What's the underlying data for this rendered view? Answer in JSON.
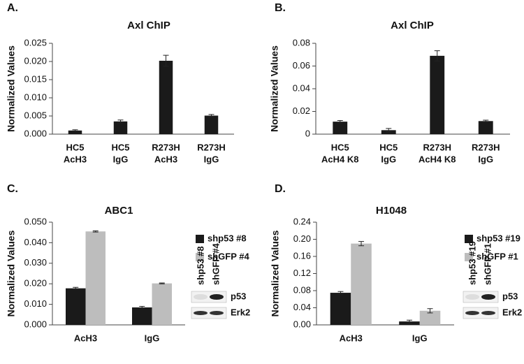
{
  "chart_data": [
    {
      "type": "bar",
      "panel_label": "A.",
      "title": "Axl ChIP",
      "y_label": "Normalized Values",
      "categories": [
        [
          "HC5",
          "AcH3"
        ],
        [
          "HC5",
          "IgG"
        ],
        [
          "R273H",
          "AcH3"
        ],
        [
          "R273H",
          "IgG"
        ]
      ],
      "values": [
        0.001,
        0.0035,
        0.0202,
        0.0051
      ],
      "errors": [
        0.0002,
        0.0004,
        0.0015,
        0.0003
      ],
      "color": "#1a1a1a",
      "ylim": [
        0,
        0.025
      ],
      "yticks": [
        {
          "value": 0,
          "label": "0.000"
        },
        0.005,
        {
          "value": 0.01,
          "label": "0.010"
        },
        0.015,
        {
          "value": 0.02,
          "label": "0.020"
        },
        0.025
      ]
    },
    {
      "type": "bar",
      "panel_label": "B.",
      "title": "Axl ChIP",
      "y_label": "Normalized Values",
      "categories": [
        [
          "HC5",
          "AcH4 K8"
        ],
        [
          "HC5",
          "IgG"
        ],
        [
          "R273H",
          "AcH4 K8"
        ],
        [
          "R273H",
          "IgG"
        ]
      ],
      "values": [
        0.011,
        0.0035,
        0.069,
        0.0115
      ],
      "errors": [
        0.001,
        0.0015,
        0.0045,
        0.0008
      ],
      "color": "#1a1a1a",
      "ylim": [
        0,
        0.08
      ],
      "yticks": [
        0,
        0.02,
        0.04,
        0.06,
        0.08
      ]
    },
    {
      "type": "bar",
      "panel_label": "C.",
      "title": "ABC1",
      "y_label": "Normalized Values",
      "categories": [
        [
          "AcH3"
        ],
        [
          "IgG"
        ]
      ],
      "series": [
        {
          "name": "shp53 #8",
          "color": "#1a1a1a",
          "values": [
            0.0178,
            0.0085
          ],
          "errors": [
            0.0005,
            0.0005
          ]
        },
        {
          "name": "shGFP #4",
          "color": "#bdbdbd",
          "values": [
            0.0455,
            0.0202
          ],
          "errors": [
            0.0003,
            0.0002
          ]
        }
      ],
      "ylim": [
        0,
        0.05
      ],
      "yticks": [
        {
          "value": 0,
          "label": "0.000"
        },
        {
          "value": 0.01,
          "label": "0.010"
        },
        {
          "value": 0.02,
          "label": "0.020"
        },
        {
          "value": 0.03,
          "label": "0.030"
        },
        {
          "value": 0.04,
          "label": "0.040"
        },
        {
          "value": 0.05,
          "label": "0.050"
        }
      ],
      "blot": {
        "lanes": [
          "shp53 #8",
          "shGFP #4"
        ],
        "bands": [
          "p53",
          "Erk2"
        ]
      }
    },
    {
      "type": "bar",
      "panel_label": "D.",
      "title": "H1048",
      "y_label": "Normalized Values",
      "categories": [
        [
          "AcH3"
        ],
        [
          "IgG"
        ]
      ],
      "series": [
        {
          "name": "shp53 #19",
          "color": "#1a1a1a",
          "values": [
            0.075,
            0.008
          ],
          "errors": [
            0.003,
            0.003
          ]
        },
        {
          "name": "shGFP #1",
          "color": "#bdbdbd",
          "values": [
            0.19,
            0.033
          ],
          "errors": [
            0.005,
            0.005
          ]
        }
      ],
      "ylim": [
        0,
        0.24
      ],
      "yticks": [
        {
          "value": 0,
          "label": "0.00"
        },
        0.04,
        0.08,
        0.12,
        0.16,
        {
          "value": 0.2,
          "label": "0.20"
        },
        0.24
      ],
      "blot": {
        "lanes": [
          "shp53 #19",
          "shGFP #1"
        ],
        "bands": [
          "p53",
          "Erk2"
        ]
      }
    }
  ]
}
